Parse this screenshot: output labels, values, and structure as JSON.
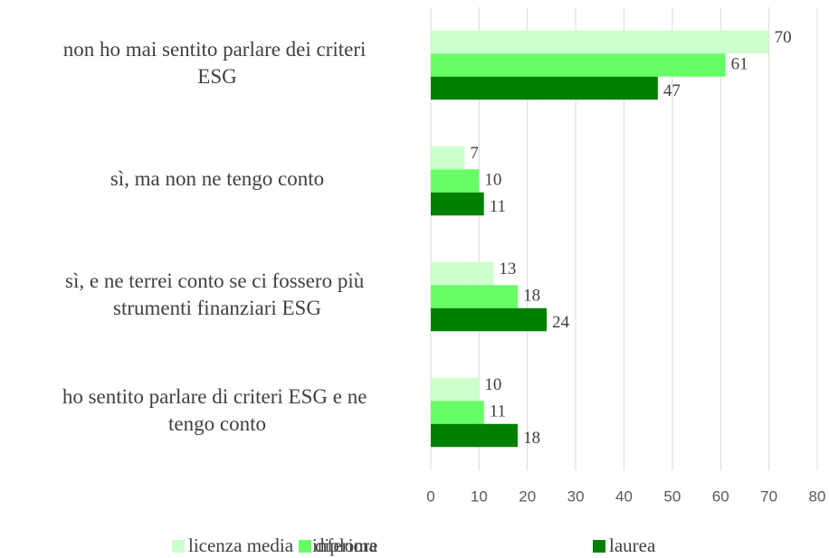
{
  "chart_data": {
    "type": "bar",
    "orientation": "horizontal",
    "categories": [
      "non ho mai sentito parlare dei criteri ESG",
      "sì, ma non ne tengo conto",
      "sì, e ne terrei conto se ci fossero più strumenti finanziari ESG",
      "ho sentito parlare di criteri ESG e ne tengo conto"
    ],
    "series": [
      {
        "name": "licenza media o inferiore",
        "color": "#ccffcc",
        "values": [
          70,
          7,
          13,
          10
        ]
      },
      {
        "name": "diploma",
        "color": "#66ff66",
        "values": [
          61,
          10,
          18,
          11
        ]
      },
      {
        "name": "laurea",
        "color": "#008000",
        "values": [
          47,
          11,
          24,
          18
        ]
      }
    ],
    "xlim": [
      0,
      80
    ],
    "xticks": [
      0,
      10,
      20,
      30,
      40,
      50,
      60,
      70,
      80
    ],
    "grid": true,
    "legend": "bottom"
  }
}
